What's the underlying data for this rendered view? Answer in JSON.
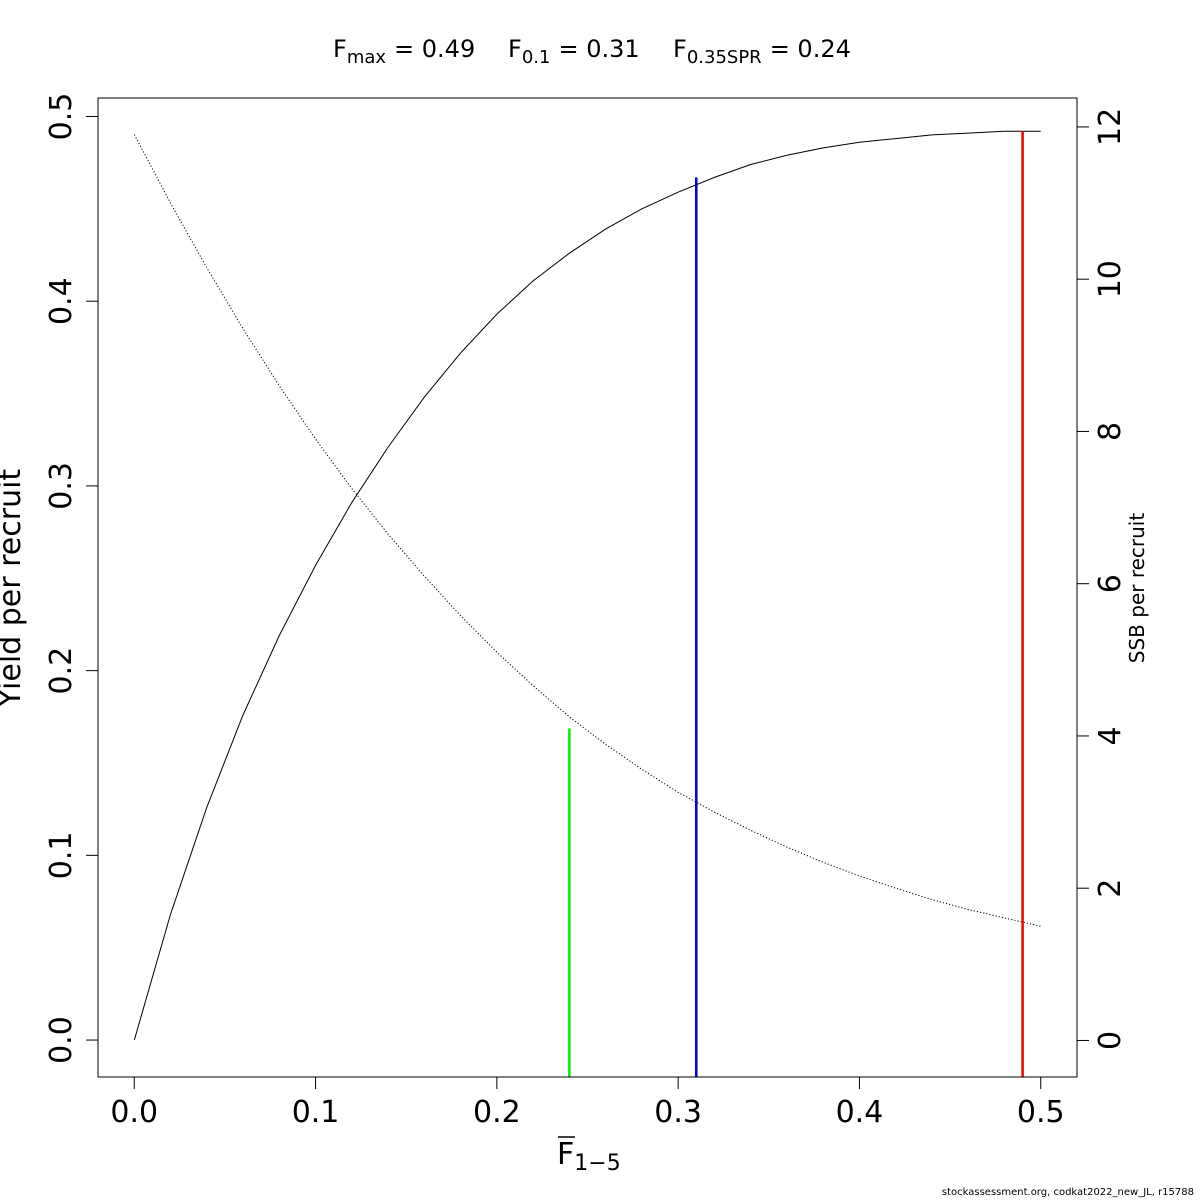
{
  "chart_data": {
    "type": "line",
    "title_parts": [
      {
        "base": "F",
        "sub": "max",
        "value": "= 0.49"
      },
      {
        "base": "F",
        "sub": "0.1",
        "value": "= 0.31"
      },
      {
        "base": "F",
        "sub": "0.35SPR",
        "value": "= 0.24"
      }
    ],
    "xlabel": {
      "base": "F",
      "sub": "1−5"
    },
    "ylabel": "Yield per recruit",
    "y2label": "SSB per recruit",
    "xlim": [
      -0.02,
      0.52
    ],
    "ylim": [
      -0.02,
      0.51
    ],
    "y2lim": [
      -0.48,
      12.38
    ],
    "x_ticks": [
      0.0,
      0.1,
      0.2,
      0.3,
      0.4,
      0.5
    ],
    "x_tick_labels": [
      "0.0",
      "0.1",
      "0.2",
      "0.3",
      "0.4",
      "0.5"
    ],
    "y_ticks": [
      0.0,
      0.1,
      0.2,
      0.3,
      0.4,
      0.5
    ],
    "y_tick_labels": [
      "0.0",
      "0.1",
      "0.2",
      "0.3",
      "0.4",
      "0.5"
    ],
    "y2_ticks": [
      0,
      2,
      4,
      6,
      8,
      10,
      12
    ],
    "y2_tick_labels": [
      "0",
      "2",
      "4",
      "6",
      "8",
      "10",
      "12"
    ],
    "series": [
      {
        "axis": "left",
        "style": "solid",
        "color": "#000000",
        "x": [
          0.0,
          0.02,
          0.04,
          0.06,
          0.08,
          0.1,
          0.12,
          0.14,
          0.16,
          0.18,
          0.2,
          0.22,
          0.24,
          0.26,
          0.28,
          0.3,
          0.32,
          0.34,
          0.36,
          0.38,
          0.4,
          0.42,
          0.44,
          0.46,
          0.48,
          0.49,
          0.5
        ],
        "y": [
          0.0,
          0.068,
          0.126,
          0.176,
          0.219,
          0.257,
          0.291,
          0.321,
          0.348,
          0.372,
          0.393,
          0.411,
          0.426,
          0.439,
          0.45,
          0.459,
          0.467,
          0.474,
          0.479,
          0.483,
          0.486,
          0.488,
          0.49,
          0.491,
          0.492,
          0.492,
          0.492
        ]
      },
      {
        "axis": "right",
        "style": "dotted",
        "color": "#000000",
        "x": [
          0.0,
          0.02,
          0.04,
          0.06,
          0.08,
          0.1,
          0.12,
          0.14,
          0.16,
          0.18,
          0.2,
          0.22,
          0.24,
          0.26,
          0.28,
          0.3,
          0.32,
          0.34,
          0.36,
          0.38,
          0.4,
          0.42,
          0.44,
          0.46,
          0.48,
          0.5
        ],
        "y": [
          11.9,
          11.0,
          10.15,
          9.35,
          8.6,
          7.9,
          7.25,
          6.65,
          6.1,
          5.58,
          5.1,
          4.66,
          4.25,
          3.89,
          3.56,
          3.26,
          3.0,
          2.76,
          2.54,
          2.34,
          2.16,
          2.0,
          1.85,
          1.72,
          1.61,
          1.5
        ]
      }
    ],
    "reference_lines": [
      {
        "x": 0.24,
        "ymax": 4.1,
        "axis": "right",
        "color": "#00ee00"
      },
      {
        "x": 0.31,
        "ymax": 0.467,
        "axis": "left",
        "color": "#0000cc"
      },
      {
        "x": 0.49,
        "ymax": 0.492,
        "axis": "left",
        "color": "#ee0000"
      }
    ],
    "grid": false,
    "legend": "none"
  },
  "footer": "stockassessment.org, codkat2022_new_JL, r15788"
}
